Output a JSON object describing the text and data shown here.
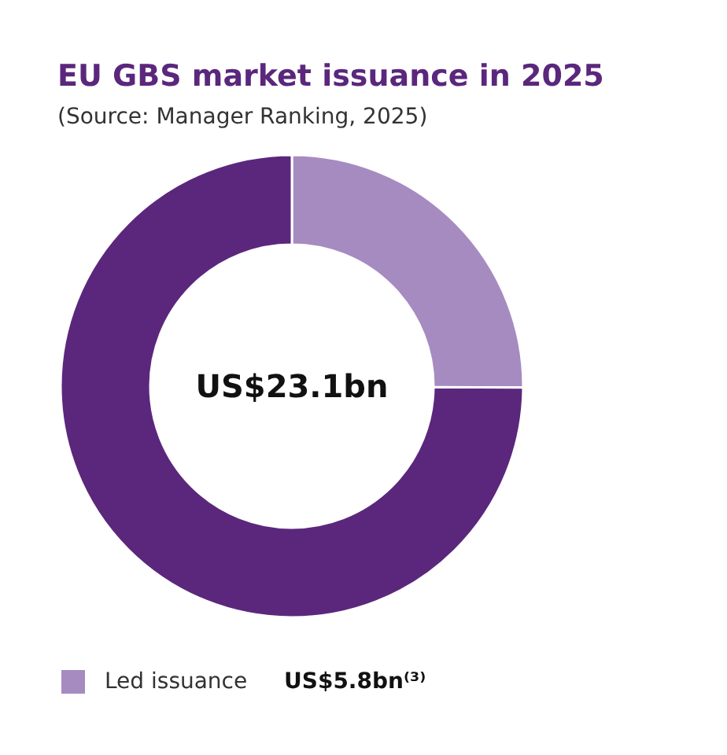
{
  "chart_data": {
    "type": "donut",
    "title": "EU GBS market issuance in 2025",
    "annotations": [
      "(Source: Manager Ranking, 2025)",
      "US$23.1bn"
    ],
    "categories": [
      "Led issuance",
      null
    ],
    "values": [
      25.1,
      74.9
    ],
    "colors": [
      "#a68bc1",
      "#5b277c"
    ],
    "value_labels": [
      "US$5.8bn⁽³⁾",
      null
    ],
    "legend": "bottom"
  }
}
